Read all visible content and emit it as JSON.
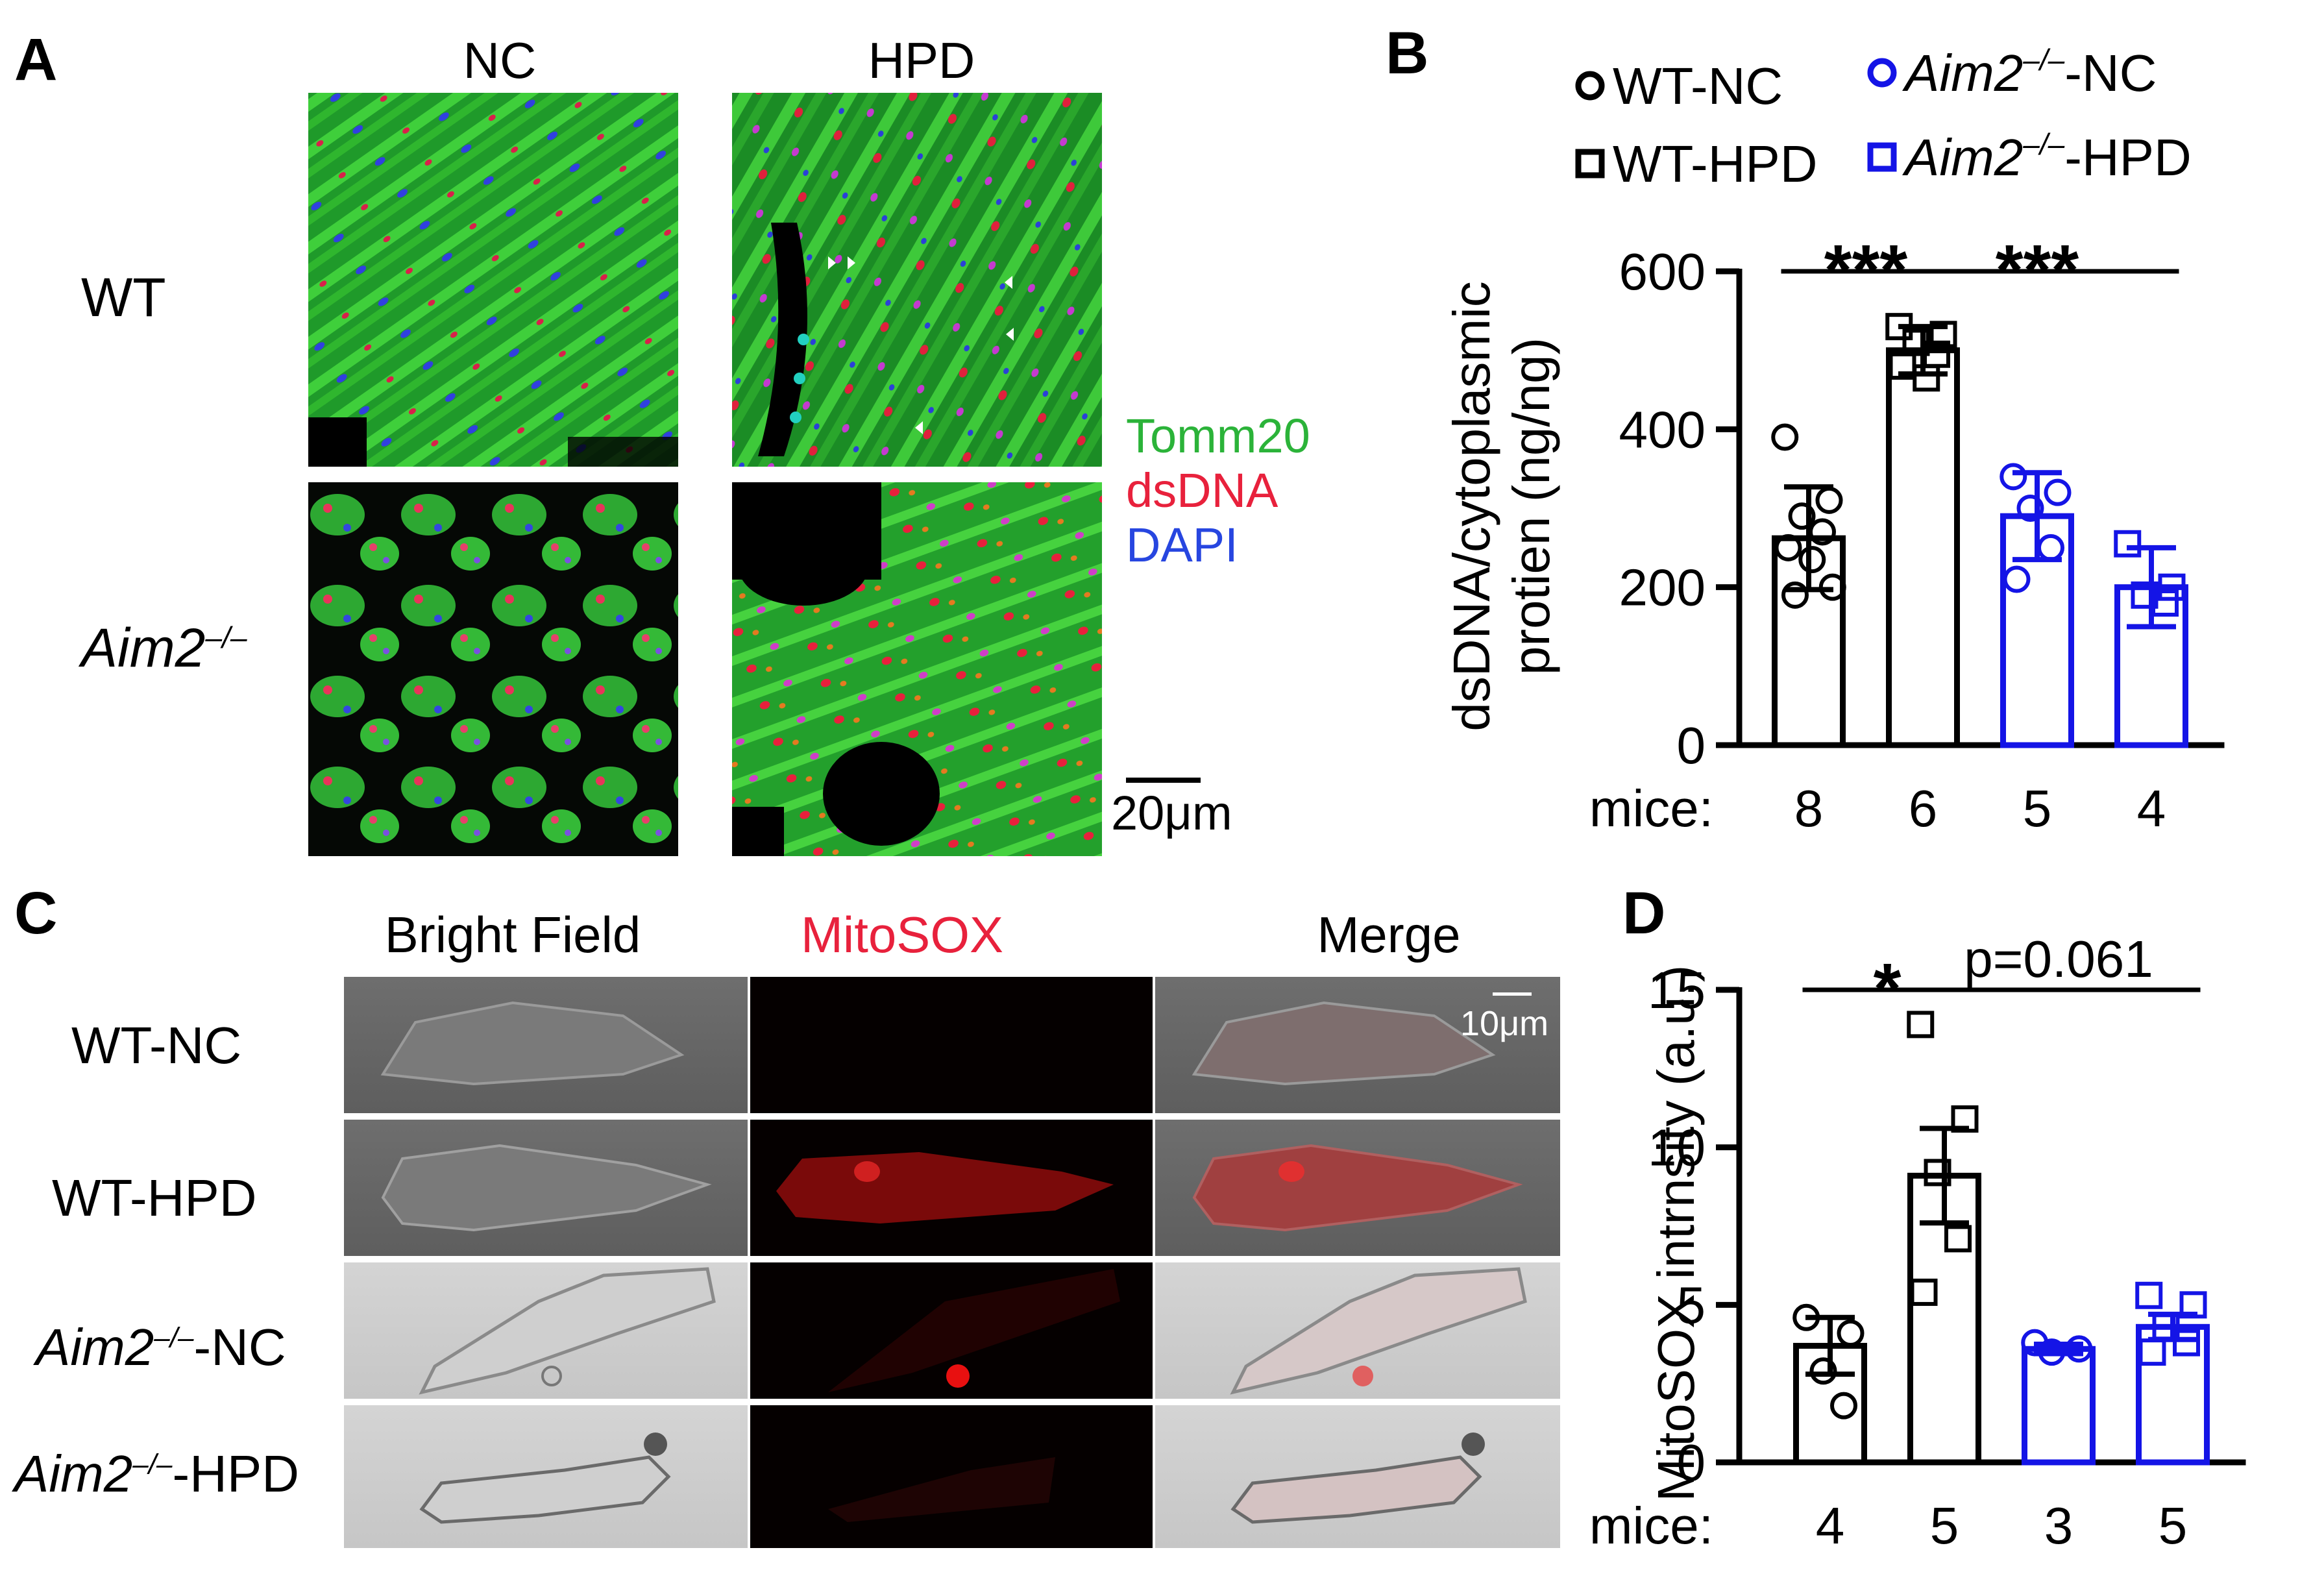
{
  "panels": {
    "A": {
      "label": "A",
      "columns": [
        "NC",
        "HPD"
      ],
      "rows": [
        {
          "label": "WT"
        },
        {
          "label": "Aim2",
          "sup": "–/–"
        }
      ],
      "legend": [
        {
          "text": "Tomm20",
          "color": "#2bb339"
        },
        {
          "text": "dsDNA",
          "color": "#e8213c"
        },
        {
          "text": "DAPI",
          "color": "#2746e0"
        }
      ],
      "scale_bar": "20μm"
    },
    "B": {
      "label": "B"
    },
    "C": {
      "label": "C",
      "columns": [
        "Bright Field",
        "MitoSOX",
        "Merge"
      ],
      "column_colors": [
        "#000000",
        "#e8213c",
        "#000000"
      ],
      "rows": [
        {
          "label": "WT-NC",
          "italic": "",
          "sup": ""
        },
        {
          "label": "WT-HPD",
          "italic": "",
          "sup": ""
        },
        {
          "label": "-NC",
          "italic": "Aim2",
          "sup": "–/–"
        },
        {
          "label": "-HPD",
          "italic": "Aim2",
          "sup": "–/–"
        }
      ],
      "scale_bar": "10μm"
    },
    "D": {
      "label": "D"
    }
  },
  "chart_data": [
    {
      "panel": "B",
      "type": "bar",
      "ylabel_lines": [
        "dsDNA/cytoplasmic",
        "protien (ng/ng)"
      ],
      "ylim": [
        0,
        600
      ],
      "yticks": [
        0,
        200,
        400,
        600
      ],
      "count_label": "mice:",
      "legend": [
        {
          "name": "WT-NC",
          "italic": "",
          "sup": "",
          "marker": "circle",
          "color": "#000000"
        },
        {
          "name": "-NC",
          "italic": "Aim2",
          "sup": "–/–",
          "marker": "circle",
          "color": "#1414e6"
        },
        {
          "name": "WT-HPD",
          "italic": "",
          "sup": "",
          "marker": "square",
          "color": "#000000"
        },
        {
          "name": "-HPD",
          "italic": "Aim2",
          "sup": "–/–",
          "marker": "square",
          "color": "#1414e6"
        }
      ],
      "series": [
        {
          "name": "WT-NC",
          "color": "#000000",
          "marker": "circle",
          "mean": 262,
          "sem": 65,
          "count": "8",
          "points": [
            390,
            310,
            290,
            270,
            250,
            235,
            200,
            190
          ]
        },
        {
          "name": "WT-HPD",
          "color": "#000000",
          "marker": "square",
          "mean": 500,
          "sem": 30,
          "count": "6",
          "points": [
            530,
            520,
            510,
            495,
            480,
            465
          ]
        },
        {
          "name": "Aim2-/--NC",
          "color": "#1414e6",
          "marker": "circle",
          "mean": 290,
          "sem": 55,
          "count": "5",
          "points": [
            340,
            320,
            300,
            250,
            210
          ]
        },
        {
          "name": "Aim2-/--HPD",
          "color": "#1414e6",
          "marker": "square",
          "mean": 200,
          "sem": 50,
          "count": "4",
          "points": [
            255,
            200,
            190,
            180
          ]
        }
      ],
      "significance": [
        {
          "from": 0,
          "to": 1,
          "label": "***"
        },
        {
          "from": 1,
          "to": 3,
          "label": "***"
        }
      ]
    },
    {
      "panel": "D",
      "type": "bar",
      "ylabel": "MitoSOX intrnsity (a.u.)",
      "ylim": [
        0,
        15
      ],
      "yticks": [
        0,
        5,
        10,
        15
      ],
      "count_label": "mice:",
      "series": [
        {
          "name": "WT-NC",
          "color": "#000000",
          "marker": "circle",
          "mean": 3.7,
          "sem": 0.9,
          "count": "4",
          "points": [
            4.6,
            4.1,
            2.9,
            1.8
          ]
        },
        {
          "name": "WT-HPD",
          "color": "#000000",
          "marker": "square",
          "mean": 9.1,
          "sem": 1.5,
          "count": "5",
          "points": [
            13.9,
            10.9,
            9.2,
            7.1,
            5.4
          ]
        },
        {
          "name": "Aim2-/--NC",
          "color": "#1414e6",
          "marker": "circle",
          "mean": 3.6,
          "sem": 0.15,
          "count": "3",
          "points": [
            3.8,
            3.6,
            3.5
          ]
        },
        {
          "name": "Aim2-/--HPD",
          "color": "#1414e6",
          "marker": "square",
          "mean": 4.3,
          "sem": 0.4,
          "count": "5",
          "points": [
            5.3,
            5.0,
            4.3,
            3.8,
            3.5
          ]
        }
      ],
      "significance": [
        {
          "from": 0,
          "to": 1,
          "label": "*"
        },
        {
          "from": 1,
          "to": 3,
          "label": "p=0.061"
        }
      ]
    }
  ]
}
